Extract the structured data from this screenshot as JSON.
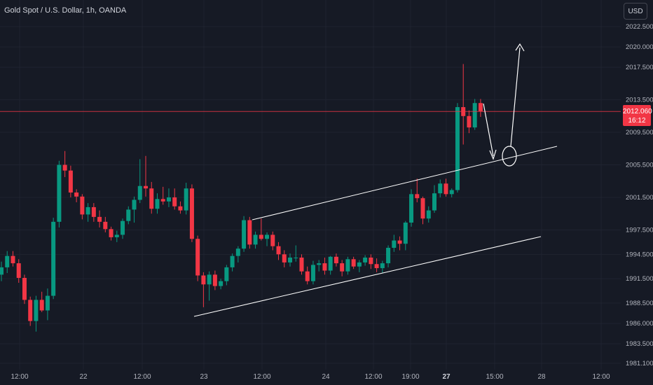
{
  "header": {
    "symbol_title": "Gold Spot / U.S. Dollar, 1h, OANDA",
    "currency_button": "USD"
  },
  "price_tag": {
    "price": "2012.060",
    "countdown": "16:12"
  },
  "colors": {
    "background": "#161a25",
    "grid": "#1f2330",
    "up": "#089981",
    "down": "#f23645",
    "axis_text": "#b2b5be",
    "current_price_line": "#f23645",
    "annotation": "#ffffff"
  },
  "chart_data": {
    "type": "candlestick",
    "title": "Gold Spot / U.S. Dollar, 1h, OANDA",
    "ylim": [
      1979.5,
      2024.3
    ],
    "y_ticks": [
      "2022.500",
      "2020.000",
      "2017.500",
      "2013.500",
      "2009.500",
      "2005.500",
      "2001.500",
      "1997.500",
      "1994.500",
      "1991.500",
      "1988.500",
      "1986.000",
      "1983.500",
      "1981.100"
    ],
    "x_ticks": [
      "12:00",
      "22",
      "12:00",
      "23",
      "12:00",
      "24",
      "12:00",
      "19:00",
      "27",
      "15:00",
      "28",
      "12:00"
    ],
    "current_price": 2012.06,
    "candles": [
      [
        1992.0,
        1993.6,
        1991.2,
        1992.9
      ],
      [
        1992.9,
        1994.9,
        1992.2,
        1994.3
      ],
      [
        1994.3,
        1994.9,
        1993.0,
        1993.4
      ],
      [
        1993.4,
        1993.9,
        1991.0,
        1991.6
      ],
      [
        1991.6,
        1992.0,
        1988.4,
        1988.9
      ],
      [
        1988.9,
        1989.3,
        1985.7,
        1986.3
      ],
      [
        1986.3,
        1989.4,
        1985.0,
        1988.9
      ],
      [
        1988.9,
        1989.9,
        1987.4,
        1987.6
      ],
      [
        1987.6,
        1990.3,
        1986.4,
        1989.4
      ],
      [
        1989.4,
        1999.0,
        1989.0,
        1998.5
      ],
      [
        1998.5,
        2006.0,
        1997.8,
        2005.5
      ],
      [
        2005.5,
        2007.2,
        2004.0,
        2004.8
      ],
      [
        2004.8,
        2005.4,
        2001.5,
        2002.1
      ],
      [
        2002.1,
        2002.5,
        2000.9,
        2001.6
      ],
      [
        2001.6,
        2001.9,
        1998.8,
        1999.4
      ],
      [
        1999.4,
        2000.8,
        1998.5,
        2000.3
      ],
      [
        2000.3,
        2000.8,
        1998.5,
        1999.1
      ],
      [
        1999.1,
        1999.9,
        1997.8,
        1998.5
      ],
      [
        1998.5,
        1999.1,
        1997.2,
        1997.6
      ],
      [
        1997.6,
        1997.9,
        1996.2,
        1996.6
      ],
      [
        1996.6,
        1997.4,
        1996.0,
        1996.9
      ],
      [
        1996.9,
        1998.9,
        1996.4,
        1998.6
      ],
      [
        1998.6,
        2000.4,
        1998.2,
        2000.0
      ],
      [
        2000.0,
        2001.6,
        1998.4,
        2001.2
      ],
      [
        2001.2,
        2006.2,
        2000.8,
        2002.9
      ],
      [
        2002.9,
        2006.6,
        2001.6,
        2002.6
      ],
      [
        2002.6,
        2003.4,
        1999.5,
        2000.1
      ],
      [
        2000.1,
        2002.0,
        1999.5,
        2001.3
      ],
      [
        2001.3,
        2002.8,
        2000.6,
        2001.0
      ],
      [
        2001.0,
        2002.6,
        2000.3,
        2001.5
      ],
      [
        2001.5,
        2002.6,
        2000.0,
        2000.4
      ],
      [
        2000.4,
        2001.0,
        1999.5,
        1999.9
      ],
      [
        1999.9,
        2003.3,
        1999.4,
        2002.6
      ],
      [
        2002.6,
        2003.1,
        1996.0,
        1996.4
      ],
      [
        1996.4,
        1996.8,
        1991.2,
        1991.9
      ],
      [
        1991.9,
        1992.3,
        1988.0,
        1990.8
      ],
      [
        1990.8,
        1992.4,
        1988.8,
        1992.0
      ],
      [
        1992.0,
        1992.5,
        1990.1,
        1990.6
      ],
      [
        1990.6,
        1991.5,
        1990.2,
        1991.2
      ],
      [
        1991.2,
        1993.2,
        1990.7,
        1992.9
      ],
      [
        1992.9,
        1994.6,
        1992.4,
        1994.3
      ],
      [
        1994.3,
        1995.5,
        1993.5,
        1995.2
      ],
      [
        1995.2,
        1999.2,
        1994.8,
        1998.7
      ],
      [
        1998.7,
        1999.1,
        1995.2,
        1995.7
      ],
      [
        1995.7,
        1997.3,
        1995.2,
        1996.9
      ],
      [
        1996.9,
        1998.9,
        1996.2,
        1996.4
      ],
      [
        1996.4,
        1997.2,
        1995.5,
        1996.9
      ],
      [
        1996.9,
        1997.3,
        1995.0,
        1995.5
      ],
      [
        1995.5,
        1996.0,
        1993.8,
        1994.5
      ],
      [
        1994.5,
        1995.0,
        1992.9,
        1993.5
      ],
      [
        1993.5,
        1994.6,
        1993.0,
        1994.1
      ],
      [
        1994.1,
        1995.6,
        1993.6,
        1994.1
      ],
      [
        1994.1,
        1994.5,
        1992.0,
        1992.4
      ],
      [
        1992.4,
        1993.0,
        1990.8,
        1991.2
      ],
      [
        1991.2,
        1993.7,
        1990.8,
        1993.2
      ],
      [
        1993.2,
        1993.8,
        1992.4,
        1993.4
      ],
      [
        1993.4,
        1994.1,
        1992.0,
        1992.5
      ],
      [
        1992.5,
        1994.3,
        1992.0,
        1994.2
      ],
      [
        1994.2,
        1994.6,
        1993.0,
        1993.4
      ],
      [
        1993.4,
        1993.8,
        1991.8,
        1992.4
      ],
      [
        1992.4,
        1994.2,
        1992.0,
        1993.9
      ],
      [
        1993.9,
        1994.2,
        1992.7,
        1993.0
      ],
      [
        1993.0,
        1993.8,
        1992.3,
        1993.5
      ],
      [
        1993.5,
        1994.4,
        1993.1,
        1994.1
      ],
      [
        1994.1,
        1994.5,
        1992.7,
        1993.3
      ],
      [
        1993.3,
        1994.0,
        1992.3,
        1992.8
      ],
      [
        1992.8,
        1993.7,
        1992.2,
        1993.4
      ],
      [
        1993.4,
        1995.6,
        1992.9,
        1995.3
      ],
      [
        1995.3,
        1996.9,
        1994.8,
        1996.2
      ],
      [
        1996.2,
        1996.7,
        1995.0,
        1995.8
      ],
      [
        1995.8,
        1998.6,
        1995.0,
        1998.4
      ],
      [
        1998.4,
        2002.5,
        1997.9,
        2001.9
      ],
      [
        2001.9,
        2003.8,
        2000.9,
        2001.4
      ],
      [
        2001.4,
        2001.6,
        1998.2,
        1998.9
      ],
      [
        1998.9,
        2000.4,
        1998.4,
        1999.9
      ],
      [
        1999.9,
        2003.0,
        1999.6,
        2002.0
      ],
      [
        2002.0,
        2003.7,
        2001.5,
        2003.2
      ],
      [
        2003.2,
        2003.8,
        2001.6,
        2001.9
      ],
      [
        2001.9,
        2002.6,
        2001.5,
        2002.4
      ],
      [
        2002.4,
        2013.1,
        2002.1,
        2012.6
      ],
      [
        2012.6,
        2017.9,
        2008.0,
        2011.5
      ],
      [
        2011.5,
        2012.2,
        2009.4,
        2010.1
      ],
      [
        2010.1,
        2013.6,
        2009.8,
        2013.1
      ],
      [
        2013.1,
        2013.6,
        2011.4,
        2012.1
      ]
    ]
  }
}
